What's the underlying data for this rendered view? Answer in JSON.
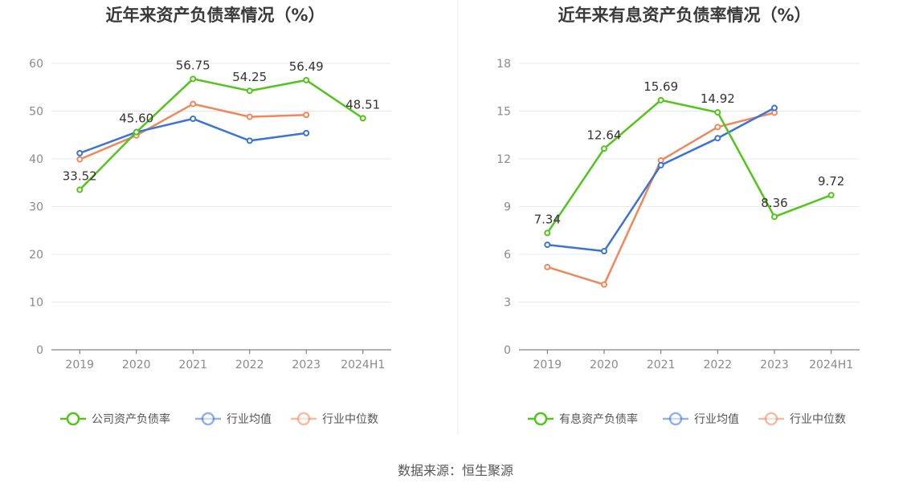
{
  "source_text": "数据来源：恒生聚源",
  "chart_data": [
    {
      "type": "line",
      "title": "近年来资产负债率情况（%）",
      "categories": [
        "2019",
        "2020",
        "2021",
        "2022",
        "2023",
        "2024H1"
      ],
      "ylim": [
        0,
        60
      ],
      "yticks": [
        0,
        10,
        20,
        30,
        40,
        50,
        60
      ],
      "grid": true,
      "legend_position": "bottom",
      "series": [
        {
          "name": "公司资产负债率",
          "color": "#52c41a",
          "values": [
            33.52,
            45.6,
            56.75,
            54.25,
            56.49,
            48.51
          ],
          "labels": [
            "33.52",
            "45.60",
            "56.75",
            "54.25",
            "56.49",
            "48.51"
          ],
          "show_labels": true
        },
        {
          "name": "行业均值",
          "color": "#3b73d9",
          "values": [
            41.2,
            45.6,
            48.4,
            43.8,
            45.4,
            null
          ],
          "show_labels": false
        },
        {
          "name": "行业中位数",
          "color": "#f0875a",
          "values": [
            39.9,
            44.9,
            51.5,
            48.8,
            49.2,
            null
          ],
          "show_labels": false
        }
      ]
    },
    {
      "type": "line",
      "title": "近年来有息资产负债率情况（%）",
      "categories": [
        "2019",
        "2020",
        "2021",
        "2022",
        "2023",
        "2024H1"
      ],
      "ylim": [
        0,
        18
      ],
      "yticks": [
        0,
        3,
        6,
        9,
        12,
        15,
        18
      ],
      "grid": true,
      "legend_position": "bottom",
      "series": [
        {
          "name": "有息资产负债率",
          "color": "#52c41a",
          "values": [
            7.34,
            12.64,
            15.69,
            14.92,
            8.36,
            9.72
          ],
          "labels": [
            "7.34",
            "12.64",
            "15.69",
            "14.92",
            "8.36",
            "9.72"
          ],
          "show_labels": true
        },
        {
          "name": "行业均值",
          "color": "#3b73d9",
          "values": [
            6.6,
            6.2,
            11.6,
            13.3,
            15.2,
            null
          ],
          "show_labels": false
        },
        {
          "name": "行业中位数",
          "color": "#f0875a",
          "values": [
            5.2,
            4.1,
            11.9,
            14.0,
            14.9,
            null
          ],
          "show_labels": false
        }
      ]
    }
  ]
}
